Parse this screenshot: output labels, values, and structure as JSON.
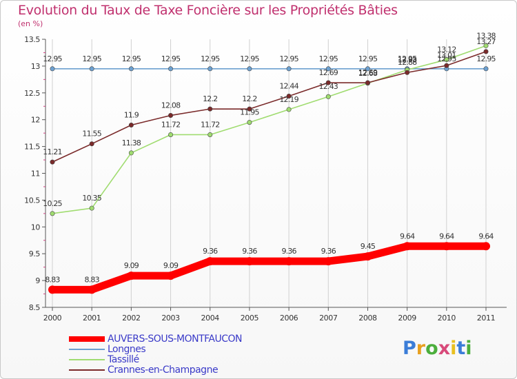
{
  "title": "Evolution du Taux de Taxe Foncière sur les Propriétés Bâties",
  "unit_label": "(en %)",
  "logo_text": "Proxiti",
  "logo_colors": [
    "#3b7dd8",
    "#e8a020",
    "#4cae3c",
    "#d84a7a",
    "#e8c020",
    "#3b7dd8",
    "#4cae3c"
  ],
  "chart_data": {
    "type": "line",
    "x": [
      2000,
      2001,
      2002,
      2003,
      2004,
      2005,
      2006,
      2007,
      2008,
      2009,
      2010,
      2011
    ],
    "ylim": [
      8.5,
      13.5
    ],
    "yticks": [
      8.5,
      9,
      9.5,
      10,
      10.5,
      11,
      11.5,
      12,
      12.5,
      13,
      13.5
    ],
    "ytick_labels": [
      "8.5",
      "9",
      "9.5",
      "10",
      "10.5",
      "11",
      "11.5",
      "12",
      "12.5",
      "13",
      "13.5"
    ],
    "grid": "vertical",
    "series": [
      {
        "name": "AUVERS-SOUS-MONTFAUCON",
        "color": "#ff0000",
        "values": [
          8.83,
          8.83,
          9.09,
          9.09,
          9.36,
          9.36,
          9.36,
          9.36,
          9.45,
          9.64,
          9.64,
          9.64
        ],
        "labels": [
          "8.83",
          "8.83",
          "9.09",
          "9.09",
          "9.36",
          "9.36",
          "9.36",
          "9.36",
          "9.45",
          "9.64",
          "9.64",
          "9.64"
        ]
      },
      {
        "name": "Longnes",
        "color": "#6ca0d0",
        "values": [
          12.95,
          12.95,
          12.95,
          12.95,
          12.95,
          12.95,
          12.95,
          12.95,
          12.95,
          12.95,
          12.95,
          12.95
        ],
        "labels": [
          "12.95",
          "12.95",
          "12.95",
          "12.95",
          "12.95",
          "12.95",
          "12.95",
          "12.95",
          "12.95",
          "12.95",
          "12.95",
          "12.95"
        ]
      },
      {
        "name": "Tassillé",
        "color": "#a0dc70",
        "values": [
          10.25,
          10.35,
          11.38,
          11.72,
          11.72,
          11.95,
          12.19,
          12.43,
          12.68,
          12.93,
          13.12,
          13.38
        ],
        "labels": [
          "10.25",
          "10.35",
          "11.38",
          "11.72",
          "11.72",
          "11.95",
          "12.19",
          "12.43",
          "12.68",
          "12.93",
          "13.12",
          "13.38"
        ]
      },
      {
        "name": "Crannes-en-Champagne",
        "color": "#7a2a2a",
        "values": [
          11.21,
          11.55,
          11.9,
          12.08,
          12.2,
          12.2,
          12.44,
          12.69,
          12.69,
          12.88,
          13.01,
          13.27
        ],
        "labels": [
          "11.21",
          "11.55",
          "11.9",
          "12.08",
          "12.2",
          "12.2",
          "12.44",
          "12.69",
          "12.69",
          "12.88",
          "13.01",
          "13.27"
        ]
      }
    ]
  }
}
